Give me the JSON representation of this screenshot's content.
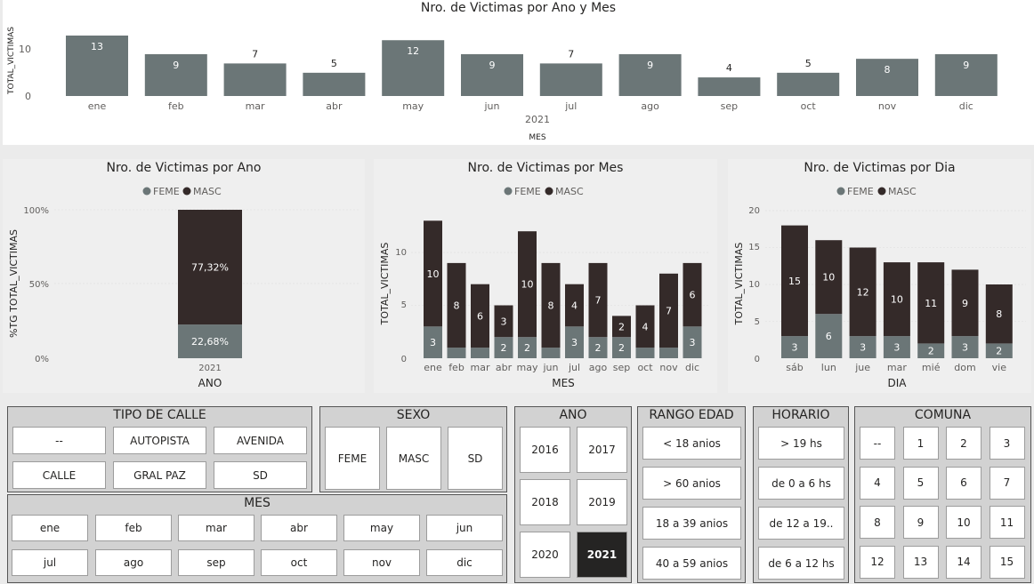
{
  "colors": {
    "feme": "#6b7677",
    "masc": "#342a29",
    "bar": "#6b7677",
    "grid": "#e6e6e6",
    "axis": "#605e5c"
  },
  "charts": {
    "top": {
      "title": "Nro. de Victimas por Ano y Mes",
      "ylabel": "TOTAL_VICTIMAS",
      "xlabel": "MES",
      "year_label": "2021",
      "yticks": [
        "0",
        "10"
      ]
    },
    "ano": {
      "title": "Nro. de Victimas por Ano",
      "ylabel": "%TG TOTAL_VICTIMAS",
      "xlabel": "ANO",
      "yticks": [
        "0%",
        "50%",
        "100%"
      ]
    },
    "mes": {
      "title": "Nro. de Victimas por Mes",
      "ylabel": "TOTAL_VICTIMAS",
      "xlabel": "MES",
      "yticks": [
        "0",
        "5",
        "10"
      ]
    },
    "dia": {
      "title": "Nro. de Victimas por Dia",
      "ylabel": "TOTAL_VICTIMAS",
      "xlabel": "DIA",
      "yticks": [
        "0",
        "5",
        "10",
        "15",
        "20"
      ]
    }
  },
  "legend": {
    "feme": "FEME",
    "masc": "MASC"
  },
  "chart_data": [
    {
      "type": "bar",
      "title": "Nro. de Victimas por Ano y Mes",
      "xlabel": "MES",
      "ylabel": "TOTAL_VICTIMAS",
      "categories": [
        "ene",
        "feb",
        "mar",
        "abr",
        "may",
        "jun",
        "jul",
        "ago",
        "sep",
        "oct",
        "nov",
        "dic"
      ],
      "values": [
        13,
        9,
        7,
        5,
        12,
        9,
        7,
        9,
        4,
        5,
        8,
        9
      ],
      "ylim": [
        0,
        13
      ]
    },
    {
      "type": "bar",
      "title": "Nro. de Victimas por Ano",
      "xlabel": "ANO",
      "ylabel": "%TG TOTAL_VICTIMAS",
      "categories": [
        "2021"
      ],
      "series": [
        {
          "name": "FEME",
          "values": [
            22.68
          ]
        },
        {
          "name": "MASC",
          "values": [
            77.32
          ]
        }
      ],
      "value_labels": {
        "FEME": [
          "22,68%"
        ],
        "MASC": [
          "77,32%"
        ]
      },
      "ylim": [
        0,
        100
      ]
    },
    {
      "type": "bar",
      "title": "Nro. de Victimas por Mes",
      "xlabel": "MES",
      "ylabel": "TOTAL_VICTIMAS",
      "categories": [
        "ene",
        "feb",
        "mar",
        "abr",
        "may",
        "jun",
        "jul",
        "ago",
        "sep",
        "oct",
        "nov",
        "dic"
      ],
      "series": [
        {
          "name": "FEME",
          "values": [
            3,
            1,
            1,
            2,
            2,
            1,
            3,
            2,
            2,
            1,
            1,
            3
          ]
        },
        {
          "name": "MASC",
          "values": [
            10,
            8,
            6,
            3,
            10,
            8,
            4,
            7,
            2,
            4,
            7,
            6
          ]
        }
      ],
      "ylim": [
        0,
        13
      ]
    },
    {
      "type": "bar",
      "title": "Nro. de Victimas por Dia",
      "xlabel": "DIA",
      "ylabel": "TOTAL_VICTIMAS",
      "categories": [
        "sáb",
        "lun",
        "jue",
        "mar",
        "mié",
        "dom",
        "vie"
      ],
      "series": [
        {
          "name": "FEME",
          "values": [
            3,
            6,
            3,
            3,
            2,
            3,
            2
          ]
        },
        {
          "name": "MASC",
          "values": [
            15,
            10,
            12,
            10,
            11,
            9,
            8
          ]
        }
      ],
      "ylim": [
        0,
        20
      ]
    }
  ],
  "slicers": {
    "tipo_calle": {
      "title": "TIPO DE CALLE",
      "items": [
        "--",
        "AUTOPISTA",
        "AVENIDA",
        "CALLE",
        "GRAL PAZ",
        "SD"
      ]
    },
    "sexo": {
      "title": "SEXO",
      "items": [
        "FEME",
        "MASC",
        "SD"
      ]
    },
    "mes": {
      "title": "MES",
      "items": [
        "ene",
        "feb",
        "mar",
        "abr",
        "may",
        "jun",
        "jul",
        "ago",
        "sep",
        "oct",
        "nov",
        "dic"
      ]
    },
    "ano": {
      "title": "ANO",
      "items": [
        "2016",
        "2017",
        "2018",
        "2019",
        "2020",
        "2021"
      ],
      "selected": "2021"
    },
    "rango_edad": {
      "title": "RANGO EDAD",
      "items": [
        "< 18 anios",
        "> 60 anios",
        "18 a 39 anios",
        "40 a 59 anios"
      ]
    },
    "horario": {
      "title": "HORARIO",
      "items": [
        "> 19 hs",
        "de 0 a 6 hs",
        "de 12 a 19..",
        "de 6 a 12 hs"
      ]
    },
    "comuna": {
      "title": "COMUNA",
      "items": [
        "--",
        "1",
        "2",
        "3",
        "4",
        "5",
        "6",
        "7",
        "8",
        "9",
        "10",
        "11",
        "12",
        "13",
        "14",
        "15"
      ]
    }
  }
}
